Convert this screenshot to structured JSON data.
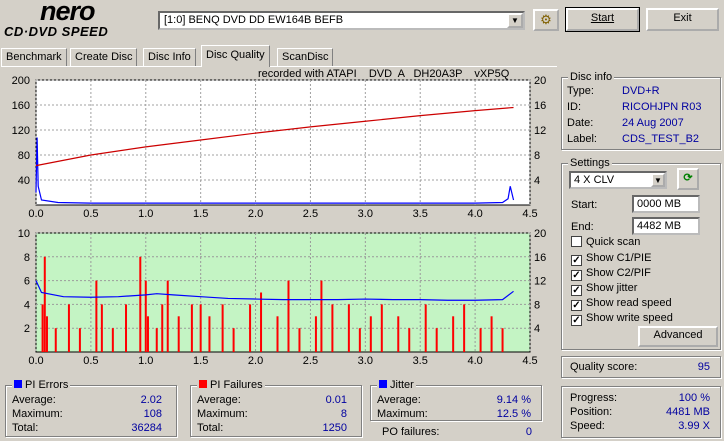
{
  "logo": {
    "main": "nero",
    "sub": "CD·DVD SPEED"
  },
  "header": {
    "drive": "[1:0]  BENQ DVD DD EW164B BEFB",
    "start_label": "Start",
    "exit_label": "Exit"
  },
  "tabs": [
    {
      "label": "Benchmark"
    },
    {
      "label": "Create Disc"
    },
    {
      "label": "Disc Info"
    },
    {
      "label": "Disc Quality",
      "active": true
    },
    {
      "label": "ScanDisc"
    }
  ],
  "recorded_with": "recorded with ATAPI    DVD  A   DH20A3P    vXP5Q",
  "chart_data": [
    {
      "type": "line",
      "name_ref": "pi-errors-chart",
      "xlim": [
        0,
        4.5
      ],
      "x_ticks": [
        "0.0",
        "0.5",
        "1.0",
        "1.5",
        "2.0",
        "2.5",
        "3.0",
        "3.5",
        "4.0",
        "4.5"
      ],
      "y_left_ticks": [
        "200",
        "160",
        "120",
        "80",
        "40"
      ],
      "y_right_ticks": [
        "20",
        "16",
        "12",
        "8",
        "4"
      ],
      "ylim_left": [
        0,
        200
      ],
      "ylim_right": [
        0,
        20
      ],
      "series": [
        {
          "legend": "PI Errors",
          "color": "#0000ff",
          "axis": "left",
          "x": [
            0,
            0.01,
            0.02,
            0.05,
            0.2,
            0.5,
            1.0,
            1.5,
            2.0,
            2.5,
            3.0,
            3.5,
            4.0,
            4.25,
            4.3,
            4.32,
            4.35
          ],
          "y": [
            20,
            108,
            30,
            8,
            4,
            3,
            3,
            3,
            3,
            3,
            3,
            3,
            3,
            4,
            10,
            30,
            8
          ]
        },
        {
          "legend": "Read speed",
          "color": "#cc0000",
          "axis": "right",
          "x": [
            0,
            0.5,
            1.0,
            1.5,
            2.0,
            2.5,
            3.0,
            3.5,
            4.0,
            4.35
          ],
          "y": [
            6.3,
            8.0,
            9.3,
            10.4,
            11.5,
            12.5,
            13.4,
            14.3,
            15.1,
            15.6
          ]
        }
      ]
    },
    {
      "type": "bar",
      "name_ref": "pi-failures-chart",
      "xlim": [
        0,
        4.5
      ],
      "x_ticks": [
        "0.0",
        "0.5",
        "1.0",
        "1.5",
        "2.0",
        "2.5",
        "3.0",
        "3.5",
        "4.0",
        "4.5"
      ],
      "y_left_ticks": [
        "10",
        "8",
        "6",
        "4",
        "2"
      ],
      "y_right_ticks": [
        "20",
        "16",
        "12",
        "8",
        "4"
      ],
      "ylim_left": [
        0,
        10
      ],
      "ylim_right": [
        0,
        20
      ],
      "series": [
        {
          "legend": "PI Failures",
          "color": "#ff0000",
          "axis": "left",
          "x": [
            0.06,
            0.08,
            0.1,
            0.18,
            0.3,
            0.4,
            0.55,
            0.6,
            0.7,
            0.82,
            0.95,
            1.0,
            1.02,
            1.1,
            1.15,
            1.2,
            1.3,
            1.42,
            1.5,
            1.58,
            1.7,
            1.8,
            1.95,
            2.05,
            2.2,
            2.3,
            2.4,
            2.55,
            2.6,
            2.7,
            2.85,
            2.95,
            3.05,
            3.15,
            3.3,
            3.4,
            3.55,
            3.65,
            3.8,
            3.9,
            4.05,
            4.15,
            4.25
          ],
          "y": [
            4,
            8,
            3,
            2,
            4,
            2,
            6,
            4,
            2,
            4,
            8,
            6,
            3,
            2,
            4,
            6,
            3,
            4,
            4,
            3,
            4,
            2,
            4,
            5,
            3,
            6,
            2,
            3,
            6,
            4,
            4,
            2,
            3,
            4,
            3,
            2,
            4,
            2,
            3,
            4,
            2,
            3,
            2
          ]
        },
        {
          "legend": "Jitter",
          "color": "#0000ff",
          "axis": "right",
          "x": [
            0,
            0.05,
            0.25,
            0.5,
            0.75,
            1.0,
            1.1,
            1.25,
            1.5,
            1.75,
            2.0,
            2.25,
            2.5,
            2.75,
            3.0,
            3.25,
            3.5,
            3.75,
            4.0,
            4.25,
            4.35
          ],
          "y": [
            12,
            10,
            9.3,
            9.2,
            9.3,
            9.6,
            9.8,
            9.6,
            9.3,
            9.0,
            8.9,
            8.8,
            8.8,
            8.8,
            8.9,
            8.8,
            8.8,
            8.7,
            8.7,
            8.8,
            10.2
          ]
        }
      ]
    }
  ],
  "disc_info": {
    "title": "Disc info",
    "rows": [
      {
        "label": "Type:",
        "value": "DVD+R"
      },
      {
        "label": "ID:",
        "value": "RICOHJPN R03"
      },
      {
        "label": "Date:",
        "value": "24 Aug 2007"
      },
      {
        "label": "Label:",
        "value": "CDS_TEST_B2"
      }
    ]
  },
  "settings": {
    "title": "Settings",
    "speed": "4 X CLV",
    "start_label": "Start:",
    "start_value": "0000 MB",
    "end_label": "End:",
    "end_value": "4482 MB",
    "checkboxes": [
      {
        "label": "Quick scan",
        "checked": false
      },
      {
        "label": "Show C1/PIE",
        "checked": true
      },
      {
        "label": "Show C2/PIF",
        "checked": true
      },
      {
        "label": "Show jitter",
        "checked": true
      },
      {
        "label": "Show read speed",
        "checked": true
      },
      {
        "label": "Show write speed",
        "checked": true
      }
    ],
    "advanced_label": "Advanced"
  },
  "quality": {
    "label": "Quality score:",
    "value": "95"
  },
  "progress": {
    "rows": [
      {
        "label": "Progress:",
        "value": "100 %"
      },
      {
        "label": "Position:",
        "value": "4481 MB"
      },
      {
        "label": "Speed:",
        "value": "3.99 X"
      }
    ]
  },
  "pi_errors": {
    "title": "PI Errors",
    "color": "#0000ff",
    "rows": [
      {
        "label": "Average:",
        "value": "2.02"
      },
      {
        "label": "Maximum:",
        "value": "108"
      },
      {
        "label": "Total:",
        "value": "36284"
      }
    ]
  },
  "pi_failures": {
    "title": "PI Failures",
    "color": "#ff0000",
    "rows": [
      {
        "label": "Average:",
        "value": "0.01"
      },
      {
        "label": "Maximum:",
        "value": "8"
      },
      {
        "label": "Total:",
        "value": "1250"
      }
    ]
  },
  "jitter": {
    "title": "Jitter",
    "color": "#0000ff",
    "rows": [
      {
        "label": "Average:",
        "value": "9.14 %"
      },
      {
        "label": "Maximum:",
        "value": "12.5 %"
      }
    ],
    "po_label": "PO failures:",
    "po_value": "0"
  }
}
